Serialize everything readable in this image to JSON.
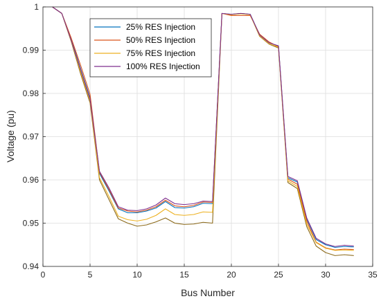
{
  "chart_data": {
    "type": "line",
    "xlabel": "Bus Number",
    "ylabel": "Voltage (pu)",
    "xlim": [
      0,
      35
    ],
    "ylim": [
      0.94,
      1.0
    ],
    "xticks": [
      0,
      5,
      10,
      15,
      20,
      25,
      30,
      35
    ],
    "yticks": [
      0.94,
      0.95,
      0.96,
      0.97,
      0.98,
      0.99,
      1.0
    ],
    "xtick_labels": [
      "0",
      "5",
      "10",
      "15",
      "20",
      "25",
      "30",
      "35"
    ],
    "ytick_labels": [
      "0.94",
      "0.95",
      "0.96",
      "0.97",
      "0.98",
      "0.99",
      "1"
    ],
    "grid": true,
    "legend": "top-left",
    "x": [
      1,
      2,
      3,
      4,
      5,
      6,
      7,
      8,
      9,
      10,
      11,
      12,
      13,
      14,
      15,
      16,
      17,
      18,
      19,
      20,
      21,
      22,
      23,
      24,
      25,
      26,
      27,
      28,
      29,
      30,
      31,
      32,
      33
    ],
    "series": [
      {
        "name": "25% RES Injection",
        "color": "#0072BD",
        "values": [
          1.0,
          0.9985,
          0.9925,
          0.9857,
          0.979,
          0.9615,
          0.9575,
          0.9533,
          0.9524,
          0.9524,
          0.9528,
          0.9535,
          0.955,
          0.9536,
          0.9535,
          0.9538,
          0.9546,
          0.9545,
          0.9985,
          0.9983,
          0.9985,
          0.9983,
          0.9935,
          0.9917,
          0.991,
          0.9605,
          0.9595,
          0.951,
          0.9462,
          0.945,
          0.9444,
          0.9446,
          0.9445
        ]
      },
      {
        "name": "50% RES Injection",
        "color": "#D95319",
        "values": [
          1.0,
          0.9985,
          0.9928,
          0.9865,
          0.9798,
          0.9618,
          0.9578,
          0.9535,
          0.9528,
          0.9526,
          0.953,
          0.9538,
          0.9553,
          0.954,
          0.9538,
          0.9541,
          0.9549,
          0.9548,
          0.9985,
          0.998,
          0.998,
          0.998,
          0.9937,
          0.9919,
          0.9908,
          0.9602,
          0.959,
          0.9505,
          0.9456,
          0.9443,
          0.9438,
          0.944,
          0.9439
        ]
      },
      {
        "name": "75% RES Injection",
        "color": "#EDB120",
        "values": [
          1.0,
          0.9985,
          0.9922,
          0.985,
          0.9783,
          0.9605,
          0.9562,
          0.9516,
          0.9508,
          0.9505,
          0.9509,
          0.9518,
          0.9533,
          0.952,
          0.9518,
          0.952,
          0.9526,
          0.9525,
          0.9985,
          0.9982,
          0.9984,
          0.9982,
          0.9933,
          0.9915,
          0.9907,
          0.9598,
          0.9585,
          0.9498,
          0.9455,
          0.9442,
          0.9437,
          0.9438,
          0.9437
        ]
      },
      {
        "name": "100% RES Injection",
        "color": "#7E2F8E",
        "values": [
          1.0,
          0.9985,
          0.9923,
          0.9855,
          0.9787,
          0.962,
          0.9582,
          0.9538,
          0.953,
          0.9529,
          0.9533,
          0.9542,
          0.9558,
          0.9545,
          0.9543,
          0.9545,
          0.9551,
          0.955,
          0.9985,
          0.9983,
          0.9985,
          0.9983,
          0.9935,
          0.9917,
          0.991,
          0.9608,
          0.9598,
          0.9512,
          0.9465,
          0.9452,
          0.9446,
          0.9449,
          0.9447
        ]
      },
      {
        "name": "",
        "color": "#8C6A1A",
        "values": [
          1.0,
          0.9985,
          0.992,
          0.9845,
          0.9778,
          0.96,
          0.9555,
          0.951,
          0.95,
          0.9493,
          0.9496,
          0.9503,
          0.9512,
          0.95,
          0.9497,
          0.9498,
          0.9502,
          0.95,
          0.9985,
          0.9982,
          0.9984,
          0.9982,
          0.9932,
          0.9914,
          0.9905,
          0.9594,
          0.958,
          0.9492,
          0.9447,
          0.9432,
          0.9425,
          0.9427,
          0.9425
        ]
      }
    ]
  }
}
